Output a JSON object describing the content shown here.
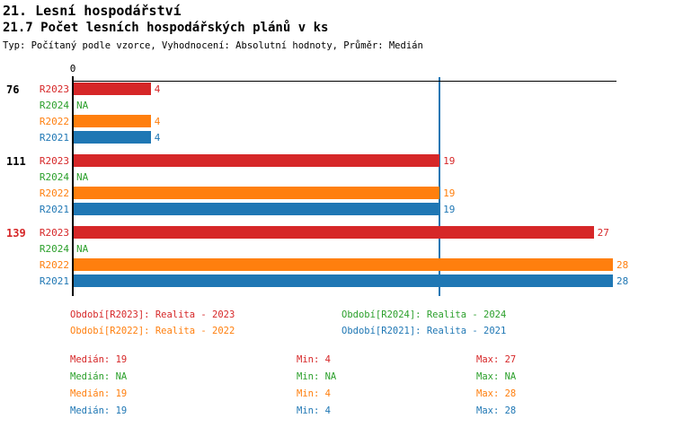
{
  "chart_data": {
    "type": "bar",
    "orientation": "horizontal",
    "title": "21. Lesní hospodářství",
    "subtitle": "21.7 Počet lesních hospodářských plánů v ks",
    "typ_line": "Typ: Počítaný podle vzorce, Vyhodnocení: Absolutní hodnoty, Průměr: Medián",
    "axis": {
      "origin_tick_label": "0",
      "value_axis_min": 0,
      "median_reference_line_value": 19,
      "median_line_color": "#1f77b4",
      "grid": false
    },
    "series": [
      {
        "id": "R2023",
        "color": "#d62728",
        "legend_text": "Období[R2023]: Realita - 2023"
      },
      {
        "id": "R2024",
        "color": "#2ca02c",
        "legend_text": "Období[R2024]: Realita - 2024"
      },
      {
        "id": "R2022",
        "color": "#ff7f0e",
        "legend_text": "Období[R2022]: Realita - 2022"
      },
      {
        "id": "R2021",
        "color": "#1f77b4",
        "legend_text": "Období[R2021]: Realita - 2021"
      }
    ],
    "na_text": "NA",
    "groups": [
      {
        "label": "76",
        "label_color": "#000000",
        "values": {
          "R2023": 4,
          "R2024": "NA",
          "R2022": 4,
          "R2021": 4
        }
      },
      {
        "label": "111",
        "label_color": "#000000",
        "values": {
          "R2023": 19,
          "R2024": "NA",
          "R2022": 19,
          "R2021": 19
        }
      },
      {
        "label": "139",
        "label_color": "#d62728",
        "values": {
          "R2023": 27,
          "R2024": "NA",
          "R2022": 28,
          "R2021": 28
        }
      }
    ],
    "legend_position": "bottom",
    "stats_labels": {
      "median": "Medián:",
      "min": "Min:",
      "max": "Max:"
    },
    "stats": [
      {
        "series": "R2023",
        "color": "#d62728",
        "median": "19",
        "min": "4",
        "max": "27"
      },
      {
        "series": "R2024",
        "color": "#2ca02c",
        "median": "NA",
        "min": "NA",
        "max": "NA"
      },
      {
        "series": "R2022",
        "color": "#ff7f0e",
        "median": "19",
        "min": "4",
        "max": "28"
      },
      {
        "series": "R2021",
        "color": "#1f77b4",
        "median": "19",
        "min": "4",
        "max": "28"
      }
    ]
  }
}
